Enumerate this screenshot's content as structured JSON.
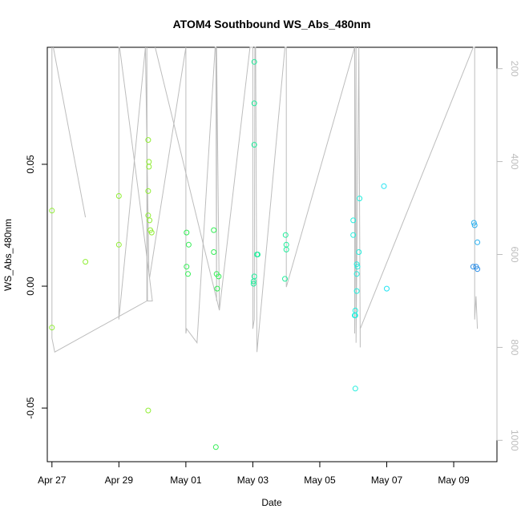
{
  "chart_data": {
    "type": "scatter",
    "title": "ATOM4 Southbound WS_Abs_480nm",
    "xlabel": "Date",
    "ylabel": "WS_Abs_480nm",
    "xlim": [
      "2018-04-26T20:40",
      "2018-05-10T07:00"
    ],
    "ylim": [
      -0.072,
      0.098
    ],
    "x_ticks": [
      {
        "value": "2018-04-27",
        "label": "Apr 27"
      },
      {
        "value": "2018-04-29",
        "label": "Apr 29"
      },
      {
        "value": "2018-05-01",
        "label": "May 01"
      },
      {
        "value": "2018-05-03",
        "label": "May 03"
      },
      {
        "value": "2018-05-05",
        "label": "May 05"
      },
      {
        "value": "2018-05-07",
        "label": "May 07"
      },
      {
        "value": "2018-05-09",
        "label": "May 09"
      }
    ],
    "y_ticks": [
      {
        "value": -0.05,
        "label": "-0.05"
      },
      {
        "value": 0.0,
        "label": "0.00"
      },
      {
        "value": 0.05,
        "label": "0.05"
      }
    ],
    "y2_ticks": [
      {
        "value": 200,
        "label": "200"
      },
      {
        "value": 400,
        "label": "400"
      },
      {
        "value": 600,
        "label": "600"
      },
      {
        "value": 800,
        "label": "800"
      },
      {
        "value": 1000,
        "label": "1000"
      }
    ],
    "y2lim": [
      1046,
      154
    ],
    "y2_reversed": true,
    "grid": false,
    "legend": "none",
    "colors": {
      "track_line": "#bdbdbd",
      "right_axis": "#bdbdbd",
      "point_scale": [
        "#90ee34",
        "#33ee55",
        "#20ee9c",
        "#22eedd",
        "#22e3f2",
        "#28b0f0",
        "#2a8ee8"
      ]
    },
    "points": [
      {
        "t": "2018-04-27T00:00",
        "y": 0.031,
        "c": 0
      },
      {
        "t": "2018-04-27T00:00",
        "y": -0.017,
        "c": 0
      },
      {
        "t": "2018-04-28T00:00",
        "y": 0.01,
        "c": 0
      },
      {
        "t": "2018-04-29T00:00",
        "y": 0.037,
        "c": 0
      },
      {
        "t": "2018-04-29T00:00",
        "y": 0.017,
        "c": 0
      },
      {
        "t": "2018-04-29T21:00",
        "y": 0.06,
        "c": 0
      },
      {
        "t": "2018-04-29T21:30",
        "y": 0.051,
        "c": 0
      },
      {
        "t": "2018-04-29T21:30",
        "y": 0.049,
        "c": 0
      },
      {
        "t": "2018-04-29T21:00",
        "y": 0.039,
        "c": 0
      },
      {
        "t": "2018-04-29T21:00",
        "y": 0.029,
        "c": 0
      },
      {
        "t": "2018-04-29T22:00",
        "y": 0.027,
        "c": 0
      },
      {
        "t": "2018-04-29T22:30",
        "y": 0.023,
        "c": 0
      },
      {
        "t": "2018-04-29T23:30",
        "y": 0.022,
        "c": 0
      },
      {
        "t": "2018-04-29T21:00",
        "y": -0.051,
        "c": 0
      },
      {
        "t": "2018-05-01T00:30",
        "y": 0.022,
        "c": 1
      },
      {
        "t": "2018-05-01T02:00",
        "y": 0.017,
        "c": 1
      },
      {
        "t": "2018-05-01T00:30",
        "y": 0.008,
        "c": 1
      },
      {
        "t": "2018-05-01T01:30",
        "y": 0.005,
        "c": 1
      },
      {
        "t": "2018-05-01T20:00",
        "y": 0.023,
        "c": 1
      },
      {
        "t": "2018-05-01T20:00",
        "y": 0.014,
        "c": 1
      },
      {
        "t": "2018-05-01T22:00",
        "y": 0.005,
        "c": 1
      },
      {
        "t": "2018-05-01T23:30",
        "y": 0.004,
        "c": 1
      },
      {
        "t": "2018-05-01T22:30",
        "y": -0.001,
        "c": 1
      },
      {
        "t": "2018-05-01T21:30",
        "y": -0.066,
        "c": 1
      },
      {
        "t": "2018-05-03T01:00",
        "y": 0.092,
        "c": 2
      },
      {
        "t": "2018-05-03T01:00",
        "y": 0.075,
        "c": 2
      },
      {
        "t": "2018-05-03T01:00",
        "y": 0.058,
        "c": 2
      },
      {
        "t": "2018-05-03T03:00",
        "y": 0.013,
        "c": 2
      },
      {
        "t": "2018-05-03T03:30",
        "y": 0.013,
        "c": 2
      },
      {
        "t": "2018-05-03T01:00",
        "y": 0.004,
        "c": 2
      },
      {
        "t": "2018-05-03T00:30",
        "y": 0.002,
        "c": 2
      },
      {
        "t": "2018-05-03T00:30",
        "y": 0.001,
        "c": 2
      },
      {
        "t": "2018-05-03T23:30",
        "y": 0.021,
        "c": 2
      },
      {
        "t": "2018-05-04T00:00",
        "y": 0.017,
        "c": 2
      },
      {
        "t": "2018-05-04T00:00",
        "y": 0.015,
        "c": 2
      },
      {
        "t": "2018-05-03T23:00",
        "y": 0.003,
        "c": 2
      },
      {
        "t": "2018-05-06T00:00",
        "y": 0.027,
        "c": 3
      },
      {
        "t": "2018-05-06T00:00",
        "y": 0.021,
        "c": 3
      },
      {
        "t": "2018-05-06T04:30",
        "y": 0.036,
        "c": 3
      },
      {
        "t": "2018-05-06T04:00",
        "y": 0.014,
        "c": 3
      },
      {
        "t": "2018-05-06T02:30",
        "y": 0.009,
        "c": 3
      },
      {
        "t": "2018-05-06T03:00",
        "y": 0.008,
        "c": 3
      },
      {
        "t": "2018-05-06T02:30",
        "y": 0.005,
        "c": 3
      },
      {
        "t": "2018-05-06T02:30",
        "y": -0.002,
        "c": 3
      },
      {
        "t": "2018-05-06T01:30",
        "y": -0.01,
        "c": 3
      },
      {
        "t": "2018-05-06T01:00",
        "y": -0.012,
        "c": 3
      },
      {
        "t": "2018-05-06T01:30",
        "y": -0.012,
        "c": 3
      },
      {
        "t": "2018-05-06T01:30",
        "y": -0.042,
        "c": 3
      },
      {
        "t": "2018-05-06T22:00",
        "y": 0.041,
        "c": 4
      },
      {
        "t": "2018-05-07T00:00",
        "y": -0.001,
        "c": 4
      },
      {
        "t": "2018-05-09T14:30",
        "y": 0.026,
        "c": 5
      },
      {
        "t": "2018-05-09T15:00",
        "y": 0.025,
        "c": 5
      },
      {
        "t": "2018-05-09T17:00",
        "y": 0.018,
        "c": 5
      },
      {
        "t": "2018-05-09T14:00",
        "y": 0.008,
        "c": 6
      },
      {
        "t": "2018-05-09T16:00",
        "y": 0.008,
        "c": 6
      },
      {
        "t": "2018-05-09T17:00",
        "y": 0.007,
        "c": 6
      }
    ],
    "track_y2": [
      [
        "2018-04-27T00:00",
        154
      ],
      [
        "2018-04-27T00:00",
        780
      ],
      [
        "2018-04-27T02:00",
        810
      ],
      [
        "2018-04-29T20:00",
        700
      ],
      [
        "2018-04-29T20:00",
        154
      ],
      [
        "2018-04-29T20:30",
        700
      ],
      [
        "2018-04-30T00:00",
        700
      ],
      [
        "2018-04-29T21:30",
        640
      ],
      [
        "2018-04-29T19:00",
        154
      ],
      [
        "2018-04-29T00:00",
        740
      ],
      [
        "2018-04-29T00:00",
        154
      ],
      [
        "2018-04-29T00:30",
        154
      ],
      [
        "2018-04-29T22:00",
        650
      ],
      [
        "2018-05-01T00:00",
        154
      ],
      [
        "2018-05-01T00:00",
        770
      ],
      [
        "2018-05-01T00:30",
        760
      ],
      [
        "2018-05-01T08:00",
        790
      ],
      [
        "2018-05-01T21:00",
        154
      ],
      [
        "2018-05-01T21:30",
        154
      ],
      [
        "2018-05-01T22:00",
        700
      ],
      [
        "2018-05-01T22:00",
        154
      ],
      [
        "2018-05-02T00:00",
        720
      ],
      [
        "2018-05-02T22:00",
        154
      ],
      [
        "2018-05-03T00:00",
        154
      ],
      [
        "2018-05-03T00:00",
        760
      ],
      [
        "2018-05-03T01:00",
        740
      ],
      [
        "2018-05-03T01:30",
        154
      ],
      [
        "2018-05-03T02:00",
        154
      ],
      [
        "2018-05-03T03:00",
        810
      ],
      [
        "2018-05-03T23:00",
        154
      ],
      [
        "2018-05-04T00:00",
        154
      ],
      [
        "2018-05-04T00:00",
        670
      ],
      [
        "2018-05-06T01:00",
        154
      ],
      [
        "2018-05-06T01:00",
        770
      ],
      [
        "2018-05-06T02:00",
        154
      ],
      [
        "2018-05-06T02:00",
        790
      ],
      [
        "2018-05-06T04:00",
        154
      ],
      [
        "2018-05-06T05:00",
        800
      ],
      [
        "2018-05-06T05:00",
        760
      ],
      [
        "2018-05-09T14:00",
        154
      ],
      [
        "2018-05-09T15:00",
        154
      ],
      [
        "2018-05-09T15:00",
        690
      ],
      [
        "2018-05-09T15:00",
        740
      ],
      [
        "2018-05-09T16:00",
        690
      ],
      [
        "2018-05-09T17:00",
        760
      ]
    ],
    "track_extra": [
      [
        [
          "2018-04-27T01:00",
          154
        ],
        [
          "2018-04-28T00:00",
          520
        ]
      ],
      [
        [
          "2018-04-30T02:00",
          154
        ],
        [
          "2018-05-02T00:00",
          720
        ]
      ]
    ]
  }
}
